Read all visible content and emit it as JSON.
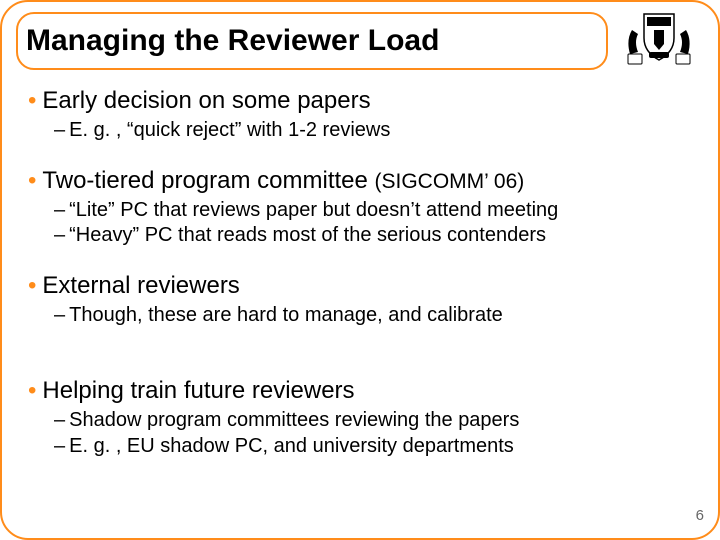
{
  "colors": {
    "border": "#ff8c1a",
    "bullet": "#ff8c1a",
    "text": "#000000",
    "shield_bg": "#ffffff",
    "shield_fill": "#000000",
    "page_num": "#666666"
  },
  "title": "Managing the Reviewer Load",
  "page_number": "6",
  "groups": [
    {
      "main": "Early decision on some papers",
      "paren": "",
      "subs": [
        "E. g. , “quick reject” with 1-2 reviews"
      ]
    },
    {
      "main": "Two-tiered program committee ",
      "paren": "(SIGCOMM’ 06)",
      "subs": [
        "“Lite” PC that reviews paper but doesn’t attend meeting",
        "“Heavy” PC that reads most of the serious contenders"
      ]
    },
    {
      "main": "External reviewers",
      "paren": "",
      "subs": [
        "Though, these are hard to manage, and calibrate"
      ],
      "extra_gap": true
    },
    {
      "main": "Helping train future reviewers",
      "paren": "",
      "subs": [
        "Shadow program committees reviewing the papers",
        "E. g. , EU shadow PC, and university departments"
      ]
    }
  ]
}
